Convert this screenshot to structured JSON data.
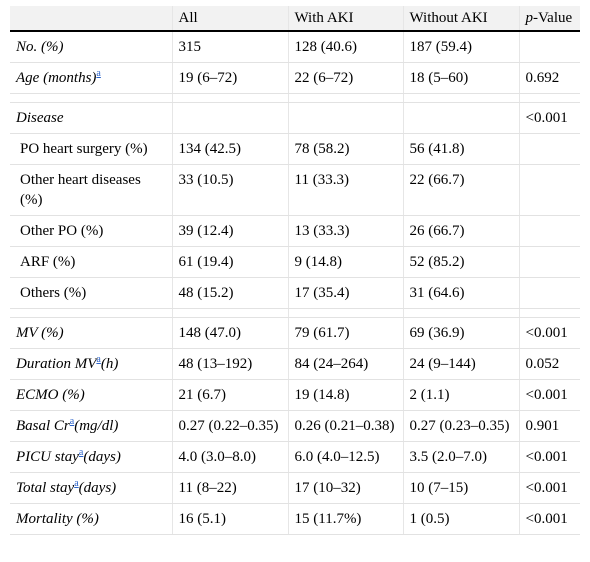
{
  "header": {
    "col0": "",
    "col1": "All",
    "col2": "With AKI",
    "col3": "Without AKI",
    "col4_italic": "p",
    "col4_rest": "-Value"
  },
  "footnote_mark": "a",
  "rows": {
    "no": {
      "label": "No. (%)",
      "all": "315",
      "with": "128 (40.6)",
      "without": "187 (59.4)",
      "p": ""
    },
    "age": {
      "label": "Age (months)",
      "all": "19 (6–72)",
      "with": "22 (6–72)",
      "without": "18 (5–60)",
      "p": "0.692"
    },
    "disease": {
      "label": "Disease",
      "all": "",
      "with": "",
      "without": "",
      "p": "<0.001"
    },
    "po_heart": {
      "label": "PO heart surgery (%)",
      "all": "134 (42.5)",
      "with": "78 (58.2)",
      "without": "56 (41.8)",
      "p": ""
    },
    "other_heart": {
      "label": "Other heart diseases (%)",
      "all": "33 (10.5)",
      "with": "11 (33.3)",
      "without": "22 (66.7)",
      "p": ""
    },
    "other_po": {
      "label": "Other PO (%)",
      "all": "39 (12.4)",
      "with": "13 (33.3)",
      "without": "26 (66.7)",
      "p": ""
    },
    "arf": {
      "label": "ARF (%)",
      "all": "61 (19.4)",
      "with": "9 (14.8)",
      "without": "52 (85.2)",
      "p": ""
    },
    "others": {
      "label": "Others (%)",
      "all": "48 (15.2)",
      "with": "17 (35.4)",
      "without": "31 (64.6)",
      "p": ""
    },
    "mv": {
      "label": "MV (%)",
      "all": "148 (47.0)",
      "with": "79 (61.7)",
      "without": "69 (36.9)",
      "p": "<0.001"
    },
    "duration_mv": {
      "label": "Duration MV",
      "label_suffix": "(h)",
      "all": "48 (13–192)",
      "with": "84 (24–264)",
      "without": "24 (9–144)",
      "p": "0.052"
    },
    "ecmo": {
      "label": "ECMO (%)",
      "all": "21 (6.7)",
      "with": "19 (14.8)",
      "without": "2 (1.1)",
      "p": "<0.001"
    },
    "basal_cr": {
      "label": "Basal Cr",
      "label_suffix": "(mg/dl)",
      "all": "0.27 (0.22–0.35)",
      "with": "0.26 (0.21–0.38)",
      "without": "0.27 (0.23–0.35)",
      "p": "0.901"
    },
    "picu_stay": {
      "label": "PICU stay",
      "label_suffix": "(days)",
      "all": "4.0 (3.0–8.0)",
      "with": "6.0 (4.0–12.5)",
      "without": "3.5 (2.0–7.0)",
      "p": "<0.001"
    },
    "total_stay": {
      "label": "Total stay",
      "label_suffix": "(days)",
      "all": "11 (8–22)",
      "with": "17 (10–32)",
      "without": "10 (7–15)",
      "p": "<0.001"
    },
    "mortality": {
      "label": "Mortality (%)",
      "all": "16 (5.1)",
      "with": "15 (11.7%)",
      "without": "1 (0.5)",
      "p": "<0.001"
    }
  }
}
